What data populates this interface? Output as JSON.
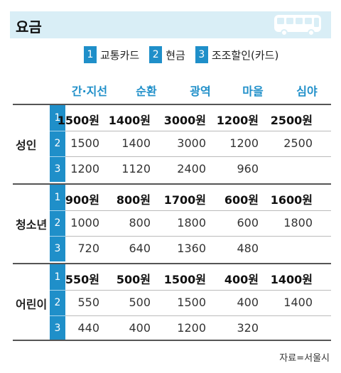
{
  "header": {
    "title": "요금",
    "icon": "bus-icon",
    "accent": "#1f8fc9",
    "bar_color": "#d9eef6"
  },
  "legend": [
    {
      "num": "1",
      "label": "교통카드"
    },
    {
      "num": "2",
      "label": "현금"
    },
    {
      "num": "3",
      "label": "조조할인(카드)"
    }
  ],
  "columns": [
    "간·지선",
    "순환",
    "광역",
    "마을",
    "심야"
  ],
  "groups": [
    {
      "label": "성인",
      "rows": [
        {
          "num": "1",
          "values": [
            "1500원",
            "1400원",
            "3000원",
            "1200원",
            "2500원"
          ]
        },
        {
          "num": "2",
          "values": [
            "1500",
            "1400",
            "3000",
            "1200",
            "2500"
          ]
        },
        {
          "num": "3",
          "values": [
            "1200",
            "1120",
            "2400",
            "960",
            ""
          ]
        }
      ]
    },
    {
      "label": "청소년",
      "rows": [
        {
          "num": "1",
          "values": [
            "900원",
            "800원",
            "1700원",
            "600원",
            "1600원"
          ]
        },
        {
          "num": "2",
          "values": [
            "1000",
            "800",
            "1800",
            "600",
            "1800"
          ]
        },
        {
          "num": "3",
          "values": [
            "720",
            "640",
            "1360",
            "480",
            ""
          ]
        }
      ]
    },
    {
      "label": "어린이",
      "rows": [
        {
          "num": "1",
          "values": [
            "550원",
            "500원",
            "1500원",
            "400원",
            "1400원"
          ]
        },
        {
          "num": "2",
          "values": [
            "550",
            "500",
            "1500",
            "400",
            "1400"
          ]
        },
        {
          "num": "3",
          "values": [
            "440",
            "400",
            "1200",
            "320",
            ""
          ]
        }
      ]
    }
  ],
  "source": "자료=서울시"
}
